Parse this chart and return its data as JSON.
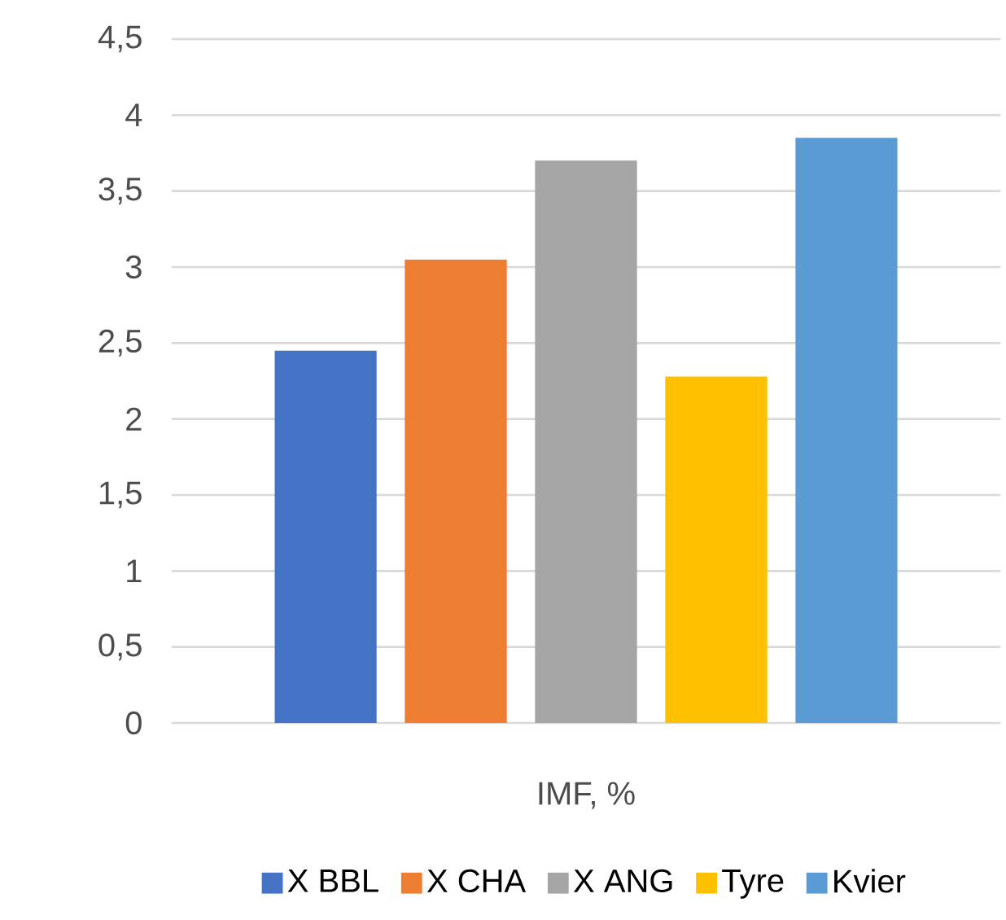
{
  "chart_data": {
    "type": "bar",
    "categories": [
      "IMF, %"
    ],
    "series": [
      {
        "name": "X BBL",
        "color": "#4472c4",
        "values": [
          2.45
        ]
      },
      {
        "name": "X CHA",
        "color": "#ed7d31",
        "values": [
          3.05
        ]
      },
      {
        "name": "X ANG",
        "color": "#a5a5a5",
        "values": [
          3.7
        ]
      },
      {
        "name": "Tyre",
        "color": "#ffc000",
        "values": [
          2.28
        ]
      },
      {
        "name": "Kvier",
        "color": "#5b9bd5",
        "values": [
          3.85
        ]
      }
    ],
    "ylim": [
      0,
      4.5
    ],
    "yticks": [
      0,
      {
        "value": 0.5,
        "label": "0,5"
      },
      1,
      {
        "value": 1.5,
        "label": "1,5"
      },
      2,
      {
        "value": 2.5,
        "label": "2,5"
      },
      3,
      {
        "value": 3.5,
        "label": "3,5"
      },
      4,
      {
        "value": 4.5,
        "label": "4,5"
      }
    ],
    "grid": "y",
    "legend": "bottom"
  }
}
